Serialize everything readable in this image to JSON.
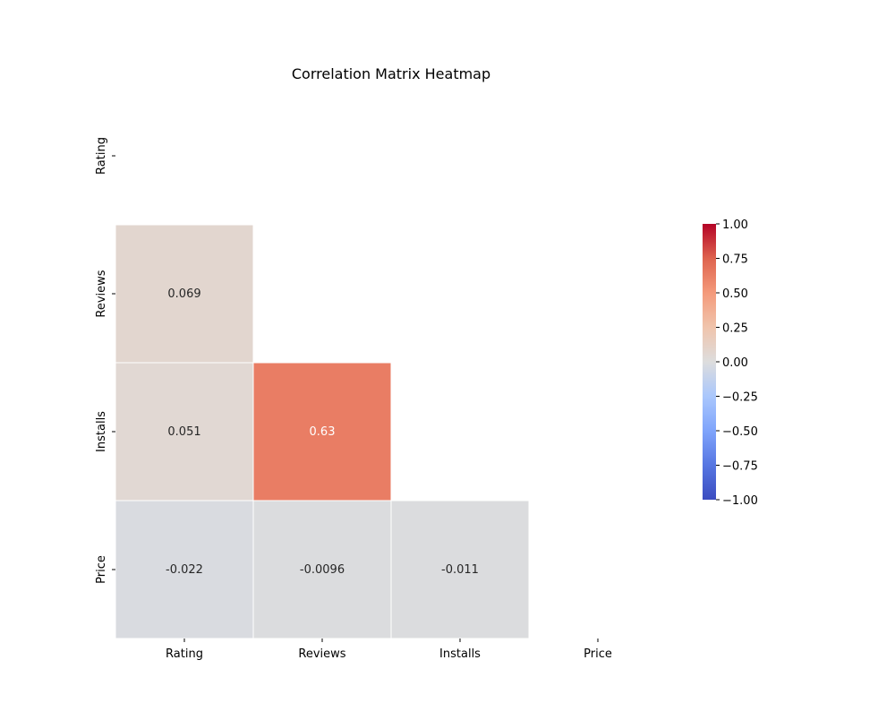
{
  "chart_data": {
    "type": "heatmap",
    "title": "Correlation Matrix Heatmap",
    "variables": [
      "Rating",
      "Reviews",
      "Installs",
      "Price"
    ],
    "mask": "upper-triangle-including-diagonal",
    "cells": [
      {
        "row": "Reviews",
        "col": "Rating",
        "value": 0.069,
        "label": "0.069"
      },
      {
        "row": "Installs",
        "col": "Rating",
        "value": 0.051,
        "label": "0.051"
      },
      {
        "row": "Installs",
        "col": "Reviews",
        "value": 0.63,
        "label": "0.63"
      },
      {
        "row": "Price",
        "col": "Rating",
        "value": -0.022,
        "label": "-0.022"
      },
      {
        "row": "Price",
        "col": "Reviews",
        "value": -0.0096,
        "label": "-0.0096"
      },
      {
        "row": "Price",
        "col": "Installs",
        "value": -0.011,
        "label": "-0.011"
      }
    ],
    "colorbar": {
      "colormap": "coolwarm",
      "vmin": -1.0,
      "vmax": 1.0,
      "ticks": [
        1.0,
        0.75,
        0.5,
        0.25,
        0.0,
        -0.25,
        -0.5,
        -0.75,
        -1.0
      ],
      "tick_labels": [
        "1.00",
        "0.75",
        "0.50",
        "0.25",
        "0.00",
        "−0.25",
        "−0.50",
        "−0.75",
        "−1.00"
      ]
    },
    "colors": {
      "low": "#3b4cc0",
      "mid": "#dddddd",
      "high": "#b40426",
      "cell_border": "#ffffff",
      "text_dark": "#262626",
      "text_light": "#ffffff"
    }
  }
}
